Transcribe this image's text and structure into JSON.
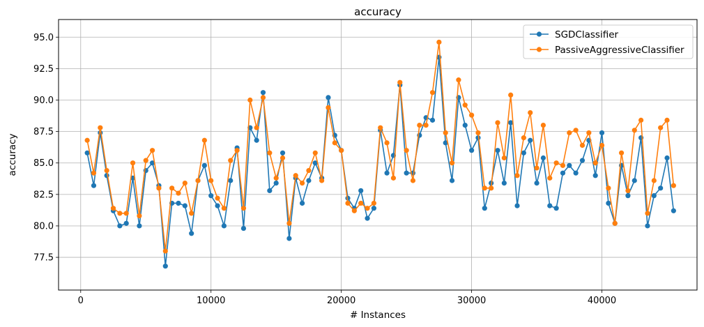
{
  "chart_data": {
    "type": "line",
    "title": "accuracy",
    "xlabel": "# Instances",
    "ylabel": "accuracy",
    "xlim": [
      -1700,
      47300
    ],
    "ylim": [
      74.9,
      96.4
    ],
    "xticks": [
      0,
      10000,
      20000,
      30000,
      40000
    ],
    "xtick_labels": [
      "0",
      "10000",
      "20000",
      "30000",
      "40000"
    ],
    "yticks": [
      77.5,
      80.0,
      82.5,
      85.0,
      87.5,
      90.0,
      92.5,
      95.0
    ],
    "ytick_labels": [
      "77.5",
      "80.0",
      "82.5",
      "85.0",
      "87.5",
      "90.0",
      "92.5",
      "95.0"
    ],
    "grid": true,
    "legend_position": "top-right",
    "x": [
      500,
      1000,
      1500,
      2000,
      2500,
      3000,
      3500,
      4000,
      4500,
      5000,
      5500,
      6000,
      6500,
      7000,
      7500,
      8000,
      8500,
      9000,
      9500,
      10000,
      10500,
      11000,
      11500,
      12000,
      12500,
      13000,
      13500,
      14000,
      14500,
      15000,
      15500,
      16000,
      16500,
      17000,
      17500,
      18000,
      18500,
      19000,
      19500,
      20000,
      20500,
      21000,
      21500,
      22000,
      22500,
      23000,
      23500,
      24000,
      24500,
      25000,
      25500,
      26000,
      26500,
      27000,
      27500,
      28000,
      28500,
      29000,
      29500,
      30000,
      30500,
      31000,
      31500,
      32000,
      32500,
      33000,
      33500,
      34000,
      34500,
      35000,
      35500,
      36000,
      36500,
      37000,
      37500,
      38000,
      38500,
      39000,
      39500,
      40000,
      40500,
      41000,
      41500,
      42000,
      42500,
      43000,
      43500,
      44000,
      44500,
      45000,
      45500
    ],
    "series": [
      {
        "name": "SGDClassifier",
        "color": "#1f77b4",
        "values": [
          85.8,
          83.2,
          87.4,
          84.0,
          81.2,
          80.0,
          80.2,
          83.8,
          80.0,
          84.4,
          85.0,
          83.2,
          76.8,
          81.8,
          81.8,
          81.6,
          79.4,
          83.6,
          84.8,
          82.4,
          81.6,
          80.0,
          83.6,
          86.2,
          79.8,
          87.8,
          86.8,
          90.6,
          82.8,
          83.4,
          85.8,
          79.0,
          83.8,
          81.8,
          83.6,
          85.0,
          83.8,
          90.2,
          87.2,
          86.0,
          82.2,
          81.4,
          82.8,
          80.6,
          81.4,
          87.6,
          84.2,
          85.6,
          91.2,
          84.2,
          84.2,
          87.2,
          88.6,
          88.4,
          93.4,
          86.6,
          83.6,
          90.2,
          88.0,
          86.0,
          87.0,
          81.4,
          83.4,
          86.0,
          83.4,
          88.2,
          81.6,
          85.8,
          86.8,
          83.4,
          85.4,
          81.6,
          81.4,
          84.2,
          84.8,
          84.2,
          85.2,
          86.8,
          84.0,
          87.4,
          81.8,
          80.2,
          84.8,
          82.4,
          83.6,
          87.0,
          80.0,
          82.4,
          83.0,
          85.4,
          81.2
        ]
      },
      {
        "name": "PassiveAggressiveClassifier",
        "color": "#ff7f0e",
        "values": [
          86.8,
          84.2,
          87.8,
          84.4,
          81.4,
          81.0,
          81.0,
          85.0,
          80.8,
          85.2,
          86.0,
          83.0,
          78.0,
          83.0,
          82.6,
          83.4,
          81.0,
          83.6,
          86.8,
          83.6,
          82.2,
          81.4,
          85.2,
          86.0,
          81.4,
          90.0,
          87.8,
          90.2,
          85.8,
          83.8,
          85.4,
          80.2,
          84.0,
          83.4,
          84.4,
          85.8,
          83.6,
          89.4,
          86.6,
          86.0,
          81.8,
          81.2,
          81.8,
          81.4,
          81.8,
          87.8,
          86.6,
          83.8,
          91.4,
          86.0,
          83.6,
          88.0,
          88.0,
          90.6,
          94.6,
          87.4,
          85.0,
          91.6,
          89.6,
          88.8,
          87.4,
          83.0,
          83.0,
          88.2,
          85.4,
          90.4,
          84.0,
          87.0,
          89.0,
          84.6,
          88.0,
          83.8,
          85.0,
          84.8,
          87.4,
          87.6,
          86.4,
          87.4,
          85.0,
          86.4,
          83.0,
          80.2,
          85.8,
          82.8,
          87.6,
          88.4,
          81.0,
          83.6,
          87.8,
          88.4,
          83.2
        ]
      }
    ]
  }
}
